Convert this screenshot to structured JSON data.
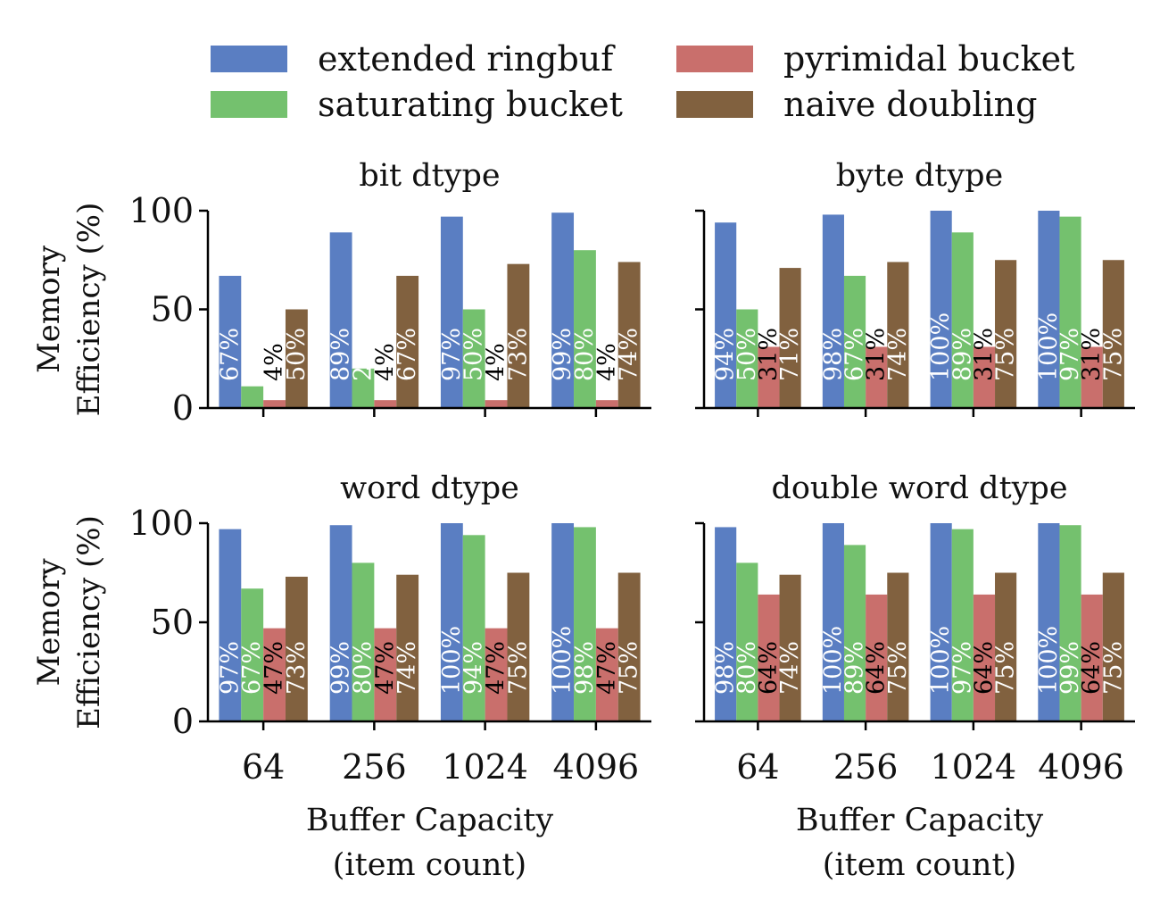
{
  "colors": {
    "extended_ringbuf": "#5a7ec2",
    "saturating_bucket": "#74c16e",
    "pyrimidal_bucket": "#c96f6c",
    "naive_doubling": "#81613f"
  },
  "legend": {
    "items": [
      {
        "label": "extended ringbuf",
        "color": "#5a7ec2"
      },
      {
        "label": "pyrimidal bucket",
        "color": "#c96f6c"
      },
      {
        "label": "saturating bucket",
        "color": "#74c16e"
      },
      {
        "label": "naive doubling",
        "color": "#81613f"
      }
    ]
  },
  "chart_data": [
    {
      "type": "bar",
      "title": "bit dtype",
      "xlabel": "",
      "ylabel": "Memory\nEfficiency (%)",
      "ylim": [
        0,
        100
      ],
      "yticks": [
        "0",
        "50",
        "100"
      ],
      "categories": [
        "64",
        "256",
        "1024",
        "4096"
      ],
      "series": [
        {
          "name": "extended ringbuf",
          "values": [
            67,
            89,
            97,
            99
          ],
          "labels": [
            "67%",
            "89%",
            "97%",
            "99%"
          ]
        },
        {
          "name": "saturating bucket",
          "values": [
            11,
            20,
            50,
            80
          ],
          "labels": [
            "11%",
            "20%",
            "50%",
            "80%"
          ]
        },
        {
          "name": "pyrimidal bucket",
          "values": [
            4,
            4,
            4,
            4
          ],
          "labels": [
            "4%",
            "4%",
            "4%",
            "4%"
          ]
        },
        {
          "name": "naive doubling",
          "values": [
            50,
            67,
            73,
            74
          ],
          "labels": [
            "50%",
            "67%",
            "73%",
            "74%"
          ]
        }
      ]
    },
    {
      "type": "bar",
      "title": "byte dtype",
      "xlabel": "",
      "ylabel": "",
      "ylim": [
        0,
        100
      ],
      "yticks": [
        "0",
        "50",
        "100"
      ],
      "categories": [
        "64",
        "256",
        "1024",
        "4096"
      ],
      "series": [
        {
          "name": "extended ringbuf",
          "values": [
            94,
            98,
            100,
            100
          ],
          "labels": [
            "94%",
            "98%",
            "100%",
            "100%"
          ]
        },
        {
          "name": "saturating bucket",
          "values": [
            50,
            67,
            89,
            97
          ],
          "labels": [
            "50%",
            "67%",
            "89%",
            "97%"
          ]
        },
        {
          "name": "pyrimidal bucket",
          "values": [
            31,
            31,
            31,
            31
          ],
          "labels": [
            "31%",
            "31%",
            "31%",
            "31%"
          ]
        },
        {
          "name": "naive doubling",
          "values": [
            71,
            74,
            75,
            75
          ],
          "labels": [
            "71%",
            "74%",
            "75%",
            "75%"
          ]
        }
      ]
    },
    {
      "type": "bar",
      "title": "word dtype",
      "xlabel": "Buffer Capacity\n(item count)",
      "ylabel": "Memory\nEfficiency (%)",
      "ylim": [
        0,
        100
      ],
      "yticks": [
        "0",
        "50",
        "100"
      ],
      "categories": [
        "64",
        "256",
        "1024",
        "4096"
      ],
      "series": [
        {
          "name": "extended ringbuf",
          "values": [
            97,
            99,
            100,
            100
          ],
          "labels": [
            "97%",
            "99%",
            "100%",
            "100%"
          ]
        },
        {
          "name": "saturating bucket",
          "values": [
            67,
            80,
            94,
            98
          ],
          "labels": [
            "67%",
            "80%",
            "94%",
            "98%"
          ]
        },
        {
          "name": "pyrimidal bucket",
          "values": [
            47,
            47,
            47,
            47
          ],
          "labels": [
            "47%",
            "47%",
            "47%",
            "47%"
          ]
        },
        {
          "name": "naive doubling",
          "values": [
            73,
            74,
            75,
            75
          ],
          "labels": [
            "73%",
            "74%",
            "75%",
            "75%"
          ]
        }
      ]
    },
    {
      "type": "bar",
      "title": "double word dtype",
      "xlabel": "Buffer Capacity\n(item count)",
      "ylabel": "",
      "ylim": [
        0,
        100
      ],
      "yticks": [
        "0",
        "50",
        "100"
      ],
      "categories": [
        "64",
        "256",
        "1024",
        "4096"
      ],
      "series": [
        {
          "name": "extended ringbuf",
          "values": [
            98,
            100,
            100,
            100
          ],
          "labels": [
            "98%",
            "100%",
            "100%",
            "100%"
          ]
        },
        {
          "name": "saturating bucket",
          "values": [
            80,
            89,
            97,
            99
          ],
          "labels": [
            "80%",
            "89%",
            "97%",
            "99%"
          ]
        },
        {
          "name": "pyrimidal bucket",
          "values": [
            64,
            64,
            64,
            64
          ],
          "labels": [
            "64%",
            "64%",
            "64%",
            "64%"
          ]
        },
        {
          "name": "naive doubling",
          "values": [
            74,
            75,
            75,
            75
          ],
          "labels": [
            "74%",
            "75%",
            "75%",
            "75%"
          ]
        }
      ]
    }
  ]
}
